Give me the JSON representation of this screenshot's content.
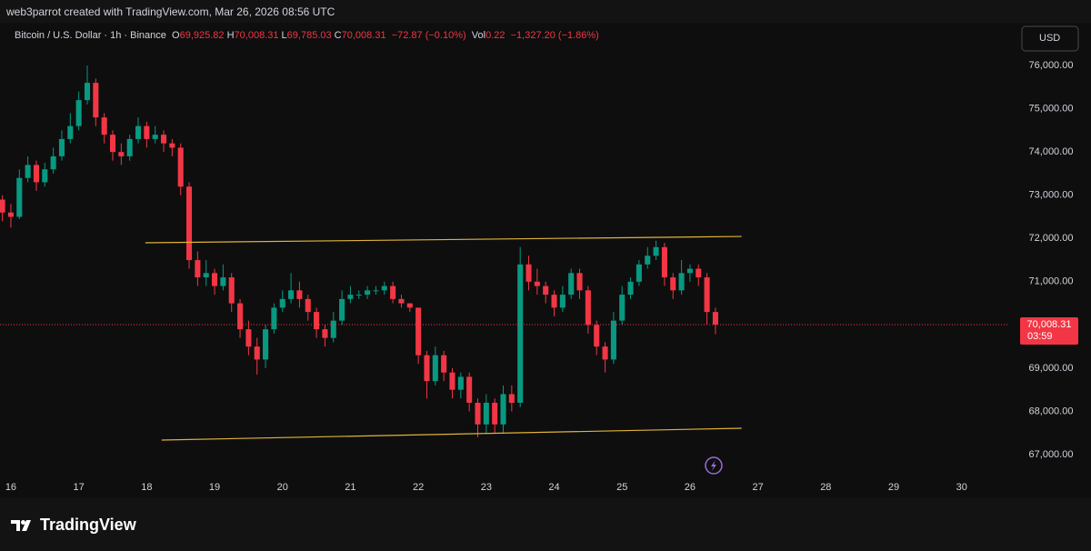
{
  "header": "web3parrot created with TradingView.com, Mar 26, 2026 08:56 UTC",
  "legend": {
    "symbol": "Bitcoin / U.S. Dollar · 1h · Binance",
    "ohlc": [
      {
        "key": "O",
        "value": "69,925.82"
      },
      {
        "key": "H",
        "value": "70,008.31"
      },
      {
        "key": "L",
        "value": "69,785.03"
      },
      {
        "key": "C",
        "value": "70,008.31"
      }
    ],
    "change": "−72.87 (−0.10%)",
    "volume_key": "Vol",
    "volume": "0.22",
    "volume_change": "−1,327.20 (−1.86%)"
  },
  "currency": "USD",
  "brand": "TradingView",
  "chart_data": {
    "type": "candlestick",
    "up_color": "#089981",
    "down_color": "#f23645",
    "line_color": "#e0b33a",
    "xlim": [
      15.84,
      30.7
    ],
    "xticks": [
      16,
      17,
      18,
      19,
      20,
      21,
      22,
      23,
      24,
      25,
      26,
      27,
      28,
      29,
      30
    ],
    "ylim": [
      66580,
      76990
    ],
    "yticks": [
      {
        "value": 67000,
        "label": "67,000.00"
      },
      {
        "value": 68000,
        "label": "68,000.00"
      },
      {
        "value": 69000,
        "label": "69,000.00"
      },
      {
        "value": 70000,
        "label": "70,000.00"
      },
      {
        "value": 71000,
        "label": "71,000.00"
      },
      {
        "value": 72000,
        "label": "72,000.00"
      },
      {
        "value": 73000,
        "label": "73,000.00"
      },
      {
        "value": 74000,
        "label": "74,000.00"
      },
      {
        "value": 75000,
        "label": "75,000.00"
      },
      {
        "value": 76000,
        "label": "76,000.00"
      }
    ],
    "x": [
      15.875,
      16,
      16.125,
      16.25,
      16.375,
      16.5,
      16.625,
      16.75,
      16.875,
      17,
      17.125,
      17.25,
      17.375,
      17.5,
      17.625,
      17.75,
      17.875,
      18,
      18.125,
      18.25,
      18.375,
      18.5,
      18.625,
      18.75,
      18.875,
      19,
      19.125,
      19.25,
      19.375,
      19.5,
      19.625,
      19.75,
      19.875,
      20,
      20.125,
      20.25,
      20.375,
      20.5,
      20.625,
      20.75,
      20.875,
      21,
      21.125,
      21.25,
      21.375,
      21.5,
      21.625,
      21.75,
      21.875,
      22,
      22.125,
      22.25,
      22.375,
      22.5,
      22.625,
      22.75,
      22.875,
      23,
      23.125,
      23.25,
      23.375,
      23.5,
      23.625,
      23.75,
      23.875,
      24,
      24.125,
      24.25,
      24.375,
      24.5,
      24.625,
      24.75,
      24.875,
      25,
      25.125,
      25.25,
      25.375,
      25.5,
      25.625,
      25.75,
      25.875,
      26,
      26.125,
      26.25,
      26.375
    ],
    "open": [
      72900,
      72600,
      72500,
      73400,
      73700,
      73300,
      73600,
      73900,
      74300,
      74600,
      75200,
      75600,
      74800,
      74400,
      74000,
      73900,
      74300,
      74600,
      74300,
      74400,
      74200,
      74100,
      73200,
      71500,
      71100,
      71200,
      70900,
      71100,
      70500,
      69900,
      69500,
      69200,
      69900,
      70400,
      70600,
      70800,
      70600,
      70300,
      69900,
      69700,
      70100,
      70600,
      70700,
      70700,
      70800,
      70800,
      70900,
      70600,
      70500,
      70400,
      69300,
      68700,
      69300,
      68900,
      68500,
      68800,
      68200,
      67700,
      68200,
      67700,
      68400,
      68200,
      71400,
      71000,
      70900,
      70700,
      70400,
      70700,
      71200,
      70800,
      70000,
      69500,
      69200,
      70100,
      70700,
      71000,
      71400,
      71600,
      71800,
      71100,
      70800,
      71200,
      71300,
      71100,
      70300
    ],
    "high": [
      73000,
      72800,
      73600,
      73900,
      73800,
      73750,
      74100,
      74500,
      74900,
      75400,
      76000,
      75700,
      74900,
      74500,
      74200,
      74400,
      74800,
      74700,
      74600,
      74500,
      74300,
      74200,
      73300,
      71700,
      71500,
      71300,
      71400,
      71200,
      70600,
      70100,
      69700,
      70000,
      70500,
      70800,
      71200,
      71000,
      70700,
      70400,
      70000,
      70300,
      70800,
      70900,
      70800,
      70900,
      70900,
      71000,
      71000,
      70700,
      70500,
      70400,
      69400,
      69500,
      69400,
      69000,
      68900,
      68900,
      68300,
      68400,
      68300,
      68600,
      68600,
      71800,
      71600,
      71300,
      71000,
      70800,
      70900,
      71300,
      71300,
      70900,
      70100,
      69600,
      70300,
      70900,
      71100,
      71500,
      71800,
      71950,
      71900,
      71200,
      71500,
      71400,
      71400,
      71200,
      70400
    ],
    "low": [
      72400,
      72250,
      72450,
      73300,
      73100,
      73200,
      73500,
      73800,
      74200,
      74500,
      75100,
      74600,
      74200,
      73800,
      73700,
      73800,
      74200,
      74100,
      74200,
      74000,
      73900,
      73000,
      71300,
      70900,
      70900,
      70700,
      70800,
      70300,
      69700,
      69300,
      68850,
      69000,
      69800,
      70300,
      70500,
      70400,
      70100,
      69700,
      69500,
      69600,
      70000,
      70500,
      70600,
      70600,
      70700,
      70700,
      70500,
      70400,
      70300,
      69100,
      68300,
      68600,
      68700,
      68300,
      68300,
      68000,
      67400,
      67500,
      67500,
      67500,
      68000,
      68100,
      70800,
      70700,
      70500,
      70200,
      70300,
      70600,
      70600,
      69800,
      69300,
      68900,
      69100,
      70000,
      70600,
      70900,
      71300,
      71500,
      70900,
      70600,
      70700,
      71000,
      70900,
      70000,
      69785.03
    ],
    "close": [
      72600,
      72500,
      73400,
      73700,
      73300,
      73600,
      73900,
      74300,
      74600,
      75200,
      75600,
      74800,
      74400,
      74000,
      73900,
      74300,
      74600,
      74300,
      74400,
      74200,
      74100,
      73200,
      71500,
      71100,
      71200,
      70900,
      71100,
      70500,
      69900,
      69500,
      69200,
      69900,
      70400,
      70600,
      70800,
      70600,
      70300,
      69900,
      69700,
      70100,
      70600,
      70700,
      70700,
      70800,
      70800,
      70900,
      70600,
      70500,
      70400,
      69300,
      68700,
      69300,
      68900,
      68500,
      68800,
      68200,
      67700,
      68200,
      67700,
      68400,
      68200,
      71400,
      71000,
      70900,
      70700,
      70400,
      70700,
      71200,
      70800,
      70000,
      69500,
      69200,
      70100,
      70700,
      71000,
      71400,
      71600,
      71800,
      71100,
      70800,
      71200,
      71300,
      71100,
      70300,
      70008.31
    ],
    "trend_lines": [
      {
        "x": [
          17.98,
          26.76
        ],
        "y": [
          71900,
          72047
        ]
      },
      {
        "x": [
          18.22,
          26.76
        ],
        "y": [
          67337,
          67611
        ]
      }
    ],
    "last_price": {
      "value": 70008.31,
      "label": "70,008.31"
    },
    "countdown": "03:59"
  }
}
